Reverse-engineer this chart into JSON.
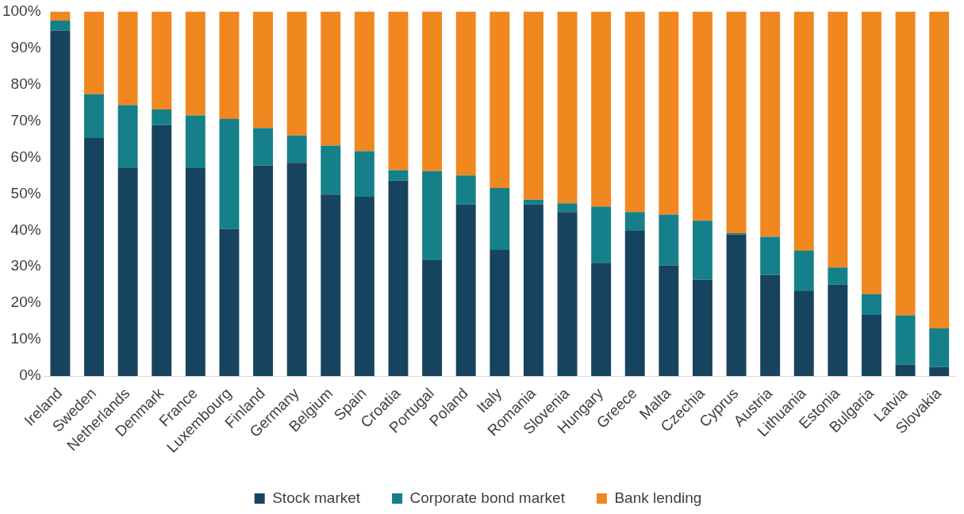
{
  "chart_data": {
    "type": "bar",
    "stacked": true,
    "categories": [
      "Ireland",
      "Sweden",
      "Netherlands",
      "Denmark",
      "France",
      "Luxembourg",
      "Finland",
      "Germany",
      "Belgium",
      "Spain",
      "Croatia",
      "Portugal",
      "Poland",
      "Italy",
      "Romania",
      "Slovenia",
      "Hungary",
      "Greece",
      "Malta",
      "Czechia",
      "Cyprus",
      "Austria",
      "Lithuania",
      "Estonia",
      "Bulgaria",
      "Latvia",
      "Slovakia"
    ],
    "series": [
      {
        "name": "Stock market",
        "color": "#17435e",
        "values": [
          94.7,
          65.3,
          57.2,
          68.8,
          57,
          40.4,
          57.8,
          58.5,
          49.8,
          49.2,
          53.6,
          31.8,
          47.1,
          34.6,
          47.1,
          45,
          31.1,
          40,
          30.4,
          26.4,
          38.8,
          27.7,
          23.3,
          25.1,
          16.8,
          3.2,
          2.5
        ]
      },
      {
        "name": "Corporate bond market",
        "color": "#158089",
        "values": [
          2.8,
          12,
          17.1,
          4.3,
          14.5,
          30.1,
          10.2,
          7.5,
          13.4,
          12.5,
          2.9,
          24.4,
          7.9,
          17,
          1.3,
          2.4,
          15.4,
          5,
          13.9,
          16.2,
          0.4,
          10.5,
          11.1,
          4.7,
          5.7,
          13.5,
          10.6
        ]
      },
      {
        "name": "Bank lending",
        "color": "#f0871f",
        "values": [
          2.5,
          22.7,
          25.7,
          26.9,
          28.5,
          29.5,
          32,
          34,
          36.8,
          38.3,
          43.5,
          43.8,
          45,
          48.4,
          51.6,
          52.6,
          53.5,
          55,
          55.7,
          57.4,
          60.8,
          61.8,
          65.6,
          70.2,
          77.5,
          83.3,
          86.9
        ]
      }
    ],
    "ylim": [
      0,
      100
    ],
    "yticks": [
      {
        "value": 0,
        "label": "0%"
      },
      {
        "value": 10,
        "label": "10%"
      },
      {
        "value": 20,
        "label": "20%"
      },
      {
        "value": 30,
        "label": "30%"
      },
      {
        "value": 40,
        "label": "40%"
      },
      {
        "value": 50,
        "label": "50%"
      },
      {
        "value": 60,
        "label": "60%"
      },
      {
        "value": 70,
        "label": "70%"
      },
      {
        "value": 80,
        "label": "80%"
      },
      {
        "value": 90,
        "label": "90%"
      },
      {
        "value": 100,
        "label": "100%"
      }
    ],
    "grid": false,
    "legend": "bottom"
  }
}
